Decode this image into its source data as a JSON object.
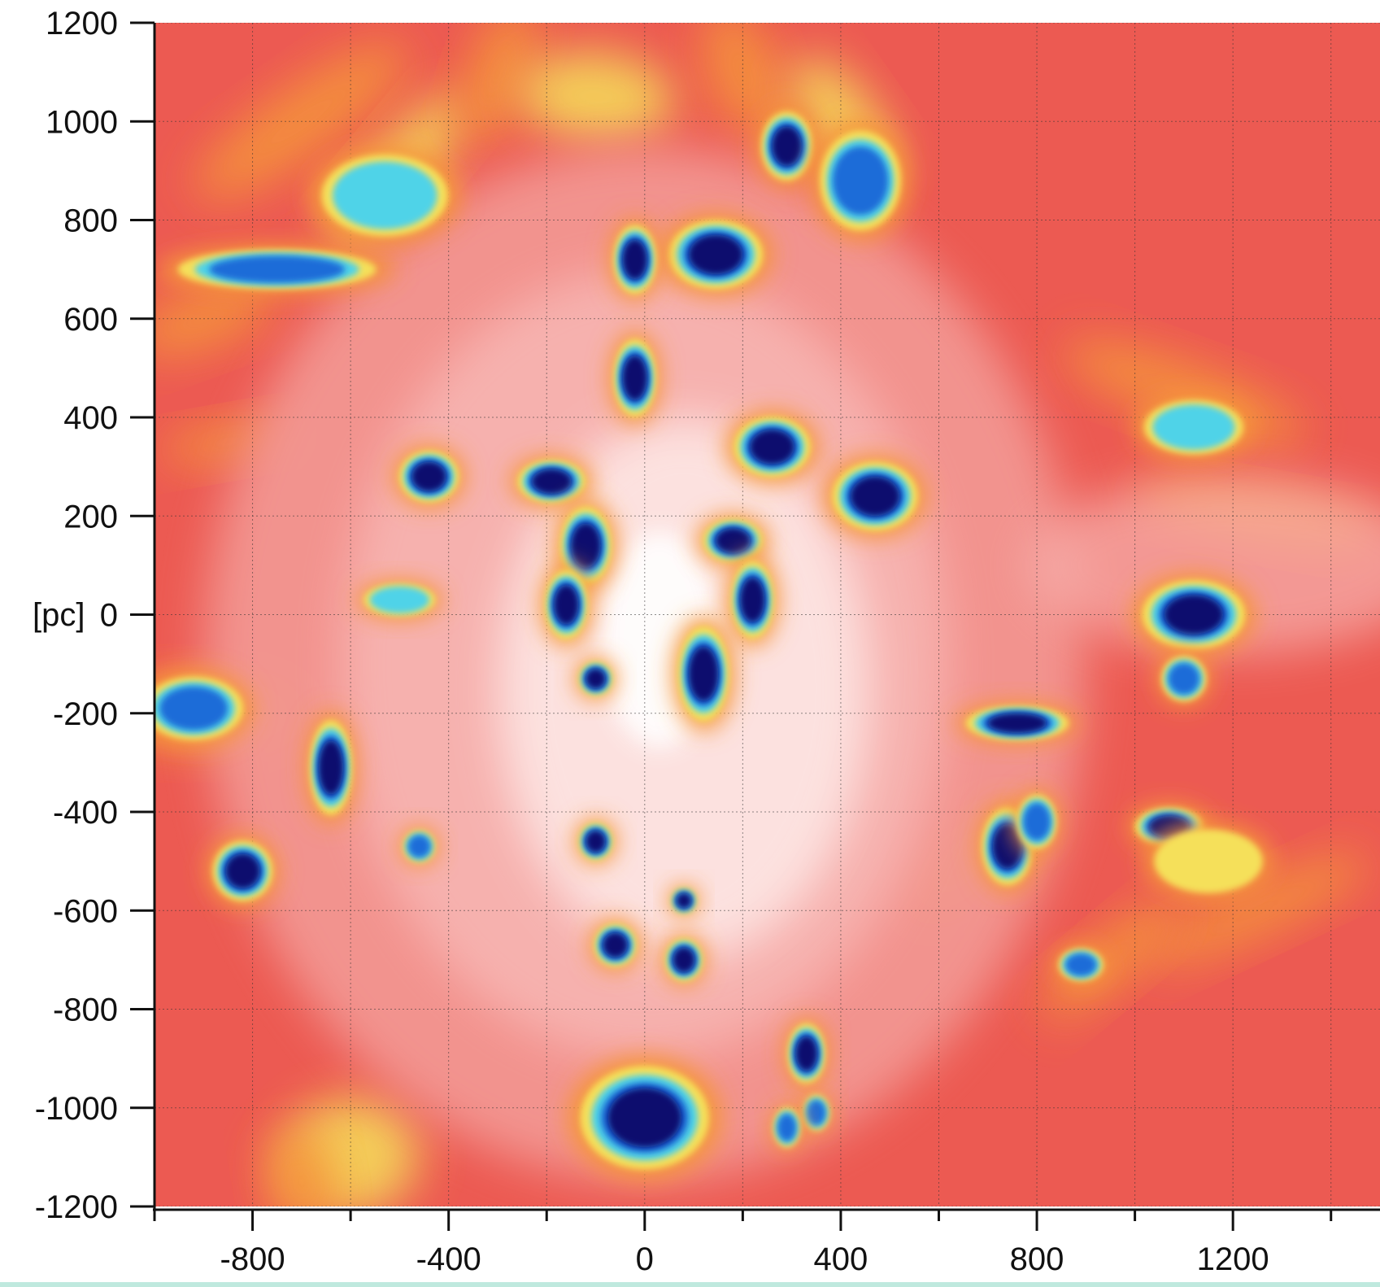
{
  "chart_data": {
    "type": "heatmap",
    "title": "",
    "xlabel": "",
    "ylabel": "[pc]",
    "xlim": [
      -1000,
      1500
    ],
    "ylim": [
      -1200,
      1200
    ],
    "grid": true,
    "grid_step": 200,
    "x_ticks": [
      -800,
      -400,
      0,
      400,
      800,
      1200
    ],
    "y_ticks": [
      1200,
      1000,
      800,
      600,
      400,
      200,
      0,
      -200,
      -400,
      -600,
      -800,
      -1000,
      -1200
    ],
    "colormap": "rainbow (dark blue high → red / white low)",
    "colors": {
      "background_red": "#ec5a52",
      "dark_blue": "#0a0a6e",
      "blue": "#1e6cd8",
      "cyan": "#4fd3e8",
      "yellow": "#f5e05a",
      "orange": "#f5963a",
      "pink": "#f7b3b0",
      "light_pink": "#fde4e2",
      "white": "#ffffff"
    },
    "features": [
      {
        "x": 145,
        "y": 730,
        "rx": 55,
        "ry": 40,
        "level": 1.0
      },
      {
        "x": -20,
        "y": 720,
        "rx": 25,
        "ry": 40,
        "level": 1.0
      },
      {
        "x": -20,
        "y": 480,
        "rx": 25,
        "ry": 45,
        "level": 1.0
      },
      {
        "x": 290,
        "y": 950,
        "rx": 30,
        "ry": 40,
        "level": 0.95
      },
      {
        "x": 440,
        "y": 880,
        "rx": 45,
        "ry": 55,
        "level": 0.85
      },
      {
        "x": 260,
        "y": 340,
        "rx": 45,
        "ry": 35,
        "level": 1.0
      },
      {
        "x": 470,
        "y": 240,
        "rx": 50,
        "ry": 40,
        "level": 0.95
      },
      {
        "x": -440,
        "y": 280,
        "rx": 35,
        "ry": 30,
        "level": 0.95
      },
      {
        "x": -190,
        "y": 270,
        "rx": 40,
        "ry": 25,
        "level": 0.95
      },
      {
        "x": -120,
        "y": 140,
        "rx": 30,
        "ry": 45,
        "level": 0.9
      },
      {
        "x": -160,
        "y": 20,
        "rx": 25,
        "ry": 40,
        "level": 0.9
      },
      {
        "x": 180,
        "y": 150,
        "rx": 35,
        "ry": 25,
        "level": 0.95
      },
      {
        "x": 220,
        "y": 30,
        "rx": 25,
        "ry": 45,
        "level": 0.95
      },
      {
        "x": 120,
        "y": -120,
        "rx": 30,
        "ry": 55,
        "level": 0.95
      },
      {
        "x": 1120,
        "y": 0,
        "rx": 60,
        "ry": 40,
        "level": 1.0
      },
      {
        "x": 1100,
        "y": -130,
        "rx": 25,
        "ry": 25,
        "level": 0.8
      },
      {
        "x": 1120,
        "y": 380,
        "rx": 55,
        "ry": 30,
        "level": 0.7
      },
      {
        "x": 760,
        "y": -220,
        "rx": 60,
        "ry": 20,
        "level": 0.9
      },
      {
        "x": -920,
        "y": -190,
        "rx": 55,
        "ry": 35,
        "level": 0.85
      },
      {
        "x": -640,
        "y": -310,
        "rx": 25,
        "ry": 55,
        "level": 0.95
      },
      {
        "x": -820,
        "y": -520,
        "rx": 35,
        "ry": 35,
        "level": 1.0
      },
      {
        "x": -460,
        "y": -470,
        "rx": 18,
        "ry": 18,
        "level": 0.8
      },
      {
        "x": -100,
        "y": -460,
        "rx": 20,
        "ry": 22,
        "level": 0.95
      },
      {
        "x": -100,
        "y": -130,
        "rx": 20,
        "ry": 20,
        "level": 0.95
      },
      {
        "x": 0,
        "y": -1020,
        "rx": 75,
        "ry": 60,
        "level": 1.0
      },
      {
        "x": 330,
        "y": -890,
        "rx": 22,
        "ry": 35,
        "level": 0.95
      },
      {
        "x": 350,
        "y": -1010,
        "rx": 15,
        "ry": 20,
        "level": 0.8
      },
      {
        "x": 290,
        "y": -1040,
        "rx": 15,
        "ry": 22,
        "level": 0.8
      },
      {
        "x": 80,
        "y": -700,
        "rx": 22,
        "ry": 25,
        "level": 0.95
      },
      {
        "x": -60,
        "y": -670,
        "rx": 25,
        "ry": 25,
        "level": 0.95
      },
      {
        "x": 80,
        "y": -580,
        "rx": 15,
        "ry": 15,
        "level": 0.9
      },
      {
        "x": 740,
        "y": -470,
        "rx": 30,
        "ry": 45,
        "level": 0.9
      },
      {
        "x": 800,
        "y": -420,
        "rx": 22,
        "ry": 30,
        "level": 0.85
      },
      {
        "x": 1070,
        "y": -430,
        "rx": 40,
        "ry": 22,
        "level": 0.9
      },
      {
        "x": 890,
        "y": -710,
        "rx": 25,
        "ry": 18,
        "level": 0.8
      },
      {
        "x": -750,
        "y": 700,
        "rx": 110,
        "ry": 22,
        "level": 0.8
      },
      {
        "x": -530,
        "y": 850,
        "rx": 70,
        "ry": 45,
        "level": 0.7
      },
      {
        "x": -500,
        "y": 30,
        "rx": 40,
        "ry": 18,
        "level": 0.6
      },
      {
        "x": 1150,
        "y": -500,
        "rx": 60,
        "ry": 35,
        "level": 0.55
      }
    ]
  },
  "y_unit_label": "[pc]"
}
